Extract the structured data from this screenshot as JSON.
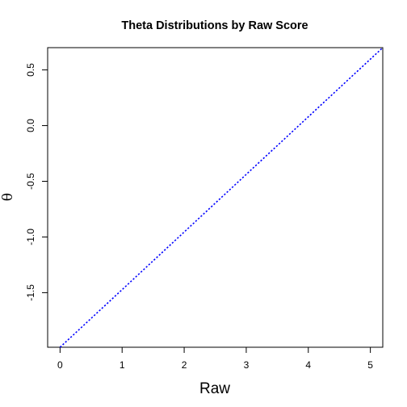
{
  "chart_data": {
    "type": "line",
    "title": "Theta Distributions by Raw Score",
    "xlabel": "Raw",
    "ylabel": "θ",
    "xlim": [
      -0.2,
      5.2
    ],
    "ylim": [
      -1.99,
      0.7
    ],
    "x_ticks": [
      0,
      1,
      2,
      3,
      4,
      5
    ],
    "x_tick_labels": [
      "0",
      "1",
      "2",
      "3",
      "4",
      "5"
    ],
    "y_ticks": [
      -1.5,
      -1.0,
      -0.5,
      0.0,
      0.5
    ],
    "y_tick_labels": [
      "-1.5",
      "-1.0",
      "-0.5",
      "0.0",
      "0.5"
    ],
    "grid": false,
    "legend": "none",
    "series": [
      {
        "x": [
          0,
          5.2
        ],
        "y": [
          -1.99,
          0.7
        ],
        "color": "#0000ff",
        "style": "dotted"
      }
    ]
  }
}
